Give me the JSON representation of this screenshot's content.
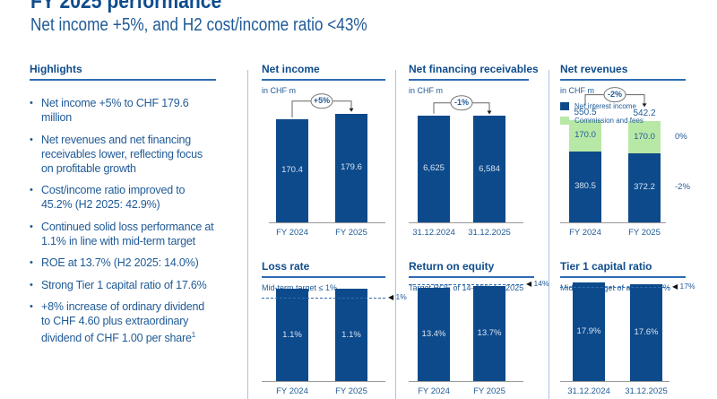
{
  "header": {
    "title": "FY 2025 performance",
    "subtitle": "Net income +5%, and H2 cost/income ratio <43%"
  },
  "highlights": {
    "title": "Highlights",
    "items": [
      {
        "text": "Net income +5% to CHF 179.6 million",
        "sup": ""
      },
      {
        "text": "Net revenues and net financing receivables lower, reflecting focus on profitable growth",
        "sup": ""
      },
      {
        "text": "Cost/income ratio improved to 45.2% (H2 2025: 42.9%)",
        "sup": ""
      },
      {
        "text": "Continued solid loss performance at 1.1% in line with mid-term target",
        "sup": ""
      },
      {
        "text": "ROE at 13.7% (H2 2025: 14.0%)",
        "sup": ""
      },
      {
        "text": "Strong Tier 1 capital ratio of 17.6%",
        "sup": ""
      },
      {
        "text": "+8% increase of ordinary dividend to CHF 4.60 plus extraordinary dividend of CHF 1.00 per share",
        "sup": "1"
      }
    ]
  },
  "chart_data": [
    {
      "type": "bar",
      "title": "Net income",
      "subtitle": "in CHF m",
      "categories": [
        "FY 2024",
        "FY 2025"
      ],
      "values": [
        170.4,
        179.6
      ],
      "value_labels": [
        "170.4",
        "179.6"
      ],
      "change_label": "+5%",
      "ylim": [
        0,
        200
      ]
    },
    {
      "type": "bar",
      "title": "Net financing receivables",
      "subtitle": "in CHF m",
      "categories": [
        "31.12.2024",
        "31.12.2025"
      ],
      "values": [
        6625,
        6584
      ],
      "value_labels": [
        "6,625",
        "6,584"
      ],
      "change_label": "-1%",
      "ylim": [
        0,
        7500
      ]
    },
    {
      "type": "bar",
      "stacked": true,
      "title": "Net revenues",
      "subtitle": "in CHF m",
      "categories": [
        "FY 2024",
        "FY 2025"
      ],
      "series": [
        {
          "name": "Net interest income",
          "values": [
            380.5,
            372.2
          ],
          "labels": [
            "380.5",
            "372.2"
          ],
          "change": "-2%",
          "color": "#0d4a8b"
        },
        {
          "name": "Commission and fees",
          "values": [
            170.0,
            170.0
          ],
          "labels": [
            "170.0",
            "170.0"
          ],
          "change": "0%",
          "color": "#b8e8a6"
        }
      ],
      "totals": [
        "550.5",
        "542.2"
      ],
      "change_label": "-2%",
      "ylim": [
        0,
        650
      ]
    },
    {
      "type": "bar",
      "title": "Loss rate",
      "subtitle": "Mid-term target ≤ 1%",
      "categories": [
        "FY 2024",
        "FY 2025"
      ],
      "values": [
        1.1,
        1.1
      ],
      "value_labels": [
        "1.1%",
        "1.1%"
      ],
      "target": 1.0,
      "target_label": "1%",
      "ylim": [
        0,
        1.2
      ]
    },
    {
      "type": "bar",
      "title": "Return on equity",
      "subtitle": "Target ROE of 14–15% for 2025",
      "categories": [
        "FY 2024",
        "FY 2025"
      ],
      "values": [
        13.4,
        13.7
      ],
      "value_labels": [
        "13.4%",
        "13.7%"
      ],
      "target": 14,
      "target_label": "14%",
      "ylim": [
        0,
        14.5
      ]
    },
    {
      "type": "bar",
      "title": "Tier 1 capital ratio",
      "subtitle": "Mid-term target of at least 17%",
      "categories": [
        "31.12.2024",
        "31.12.2025"
      ],
      "values": [
        17.9,
        17.6
      ],
      "value_labels": [
        "17.9%",
        "17.6%"
      ],
      "target": 17,
      "target_label": "17%",
      "ylim": [
        0,
        18.2
      ]
    }
  ],
  "colors": {
    "primary": "#0d4a8b",
    "accent_green": "#b8e8a6",
    "text": "#1f5a96"
  }
}
